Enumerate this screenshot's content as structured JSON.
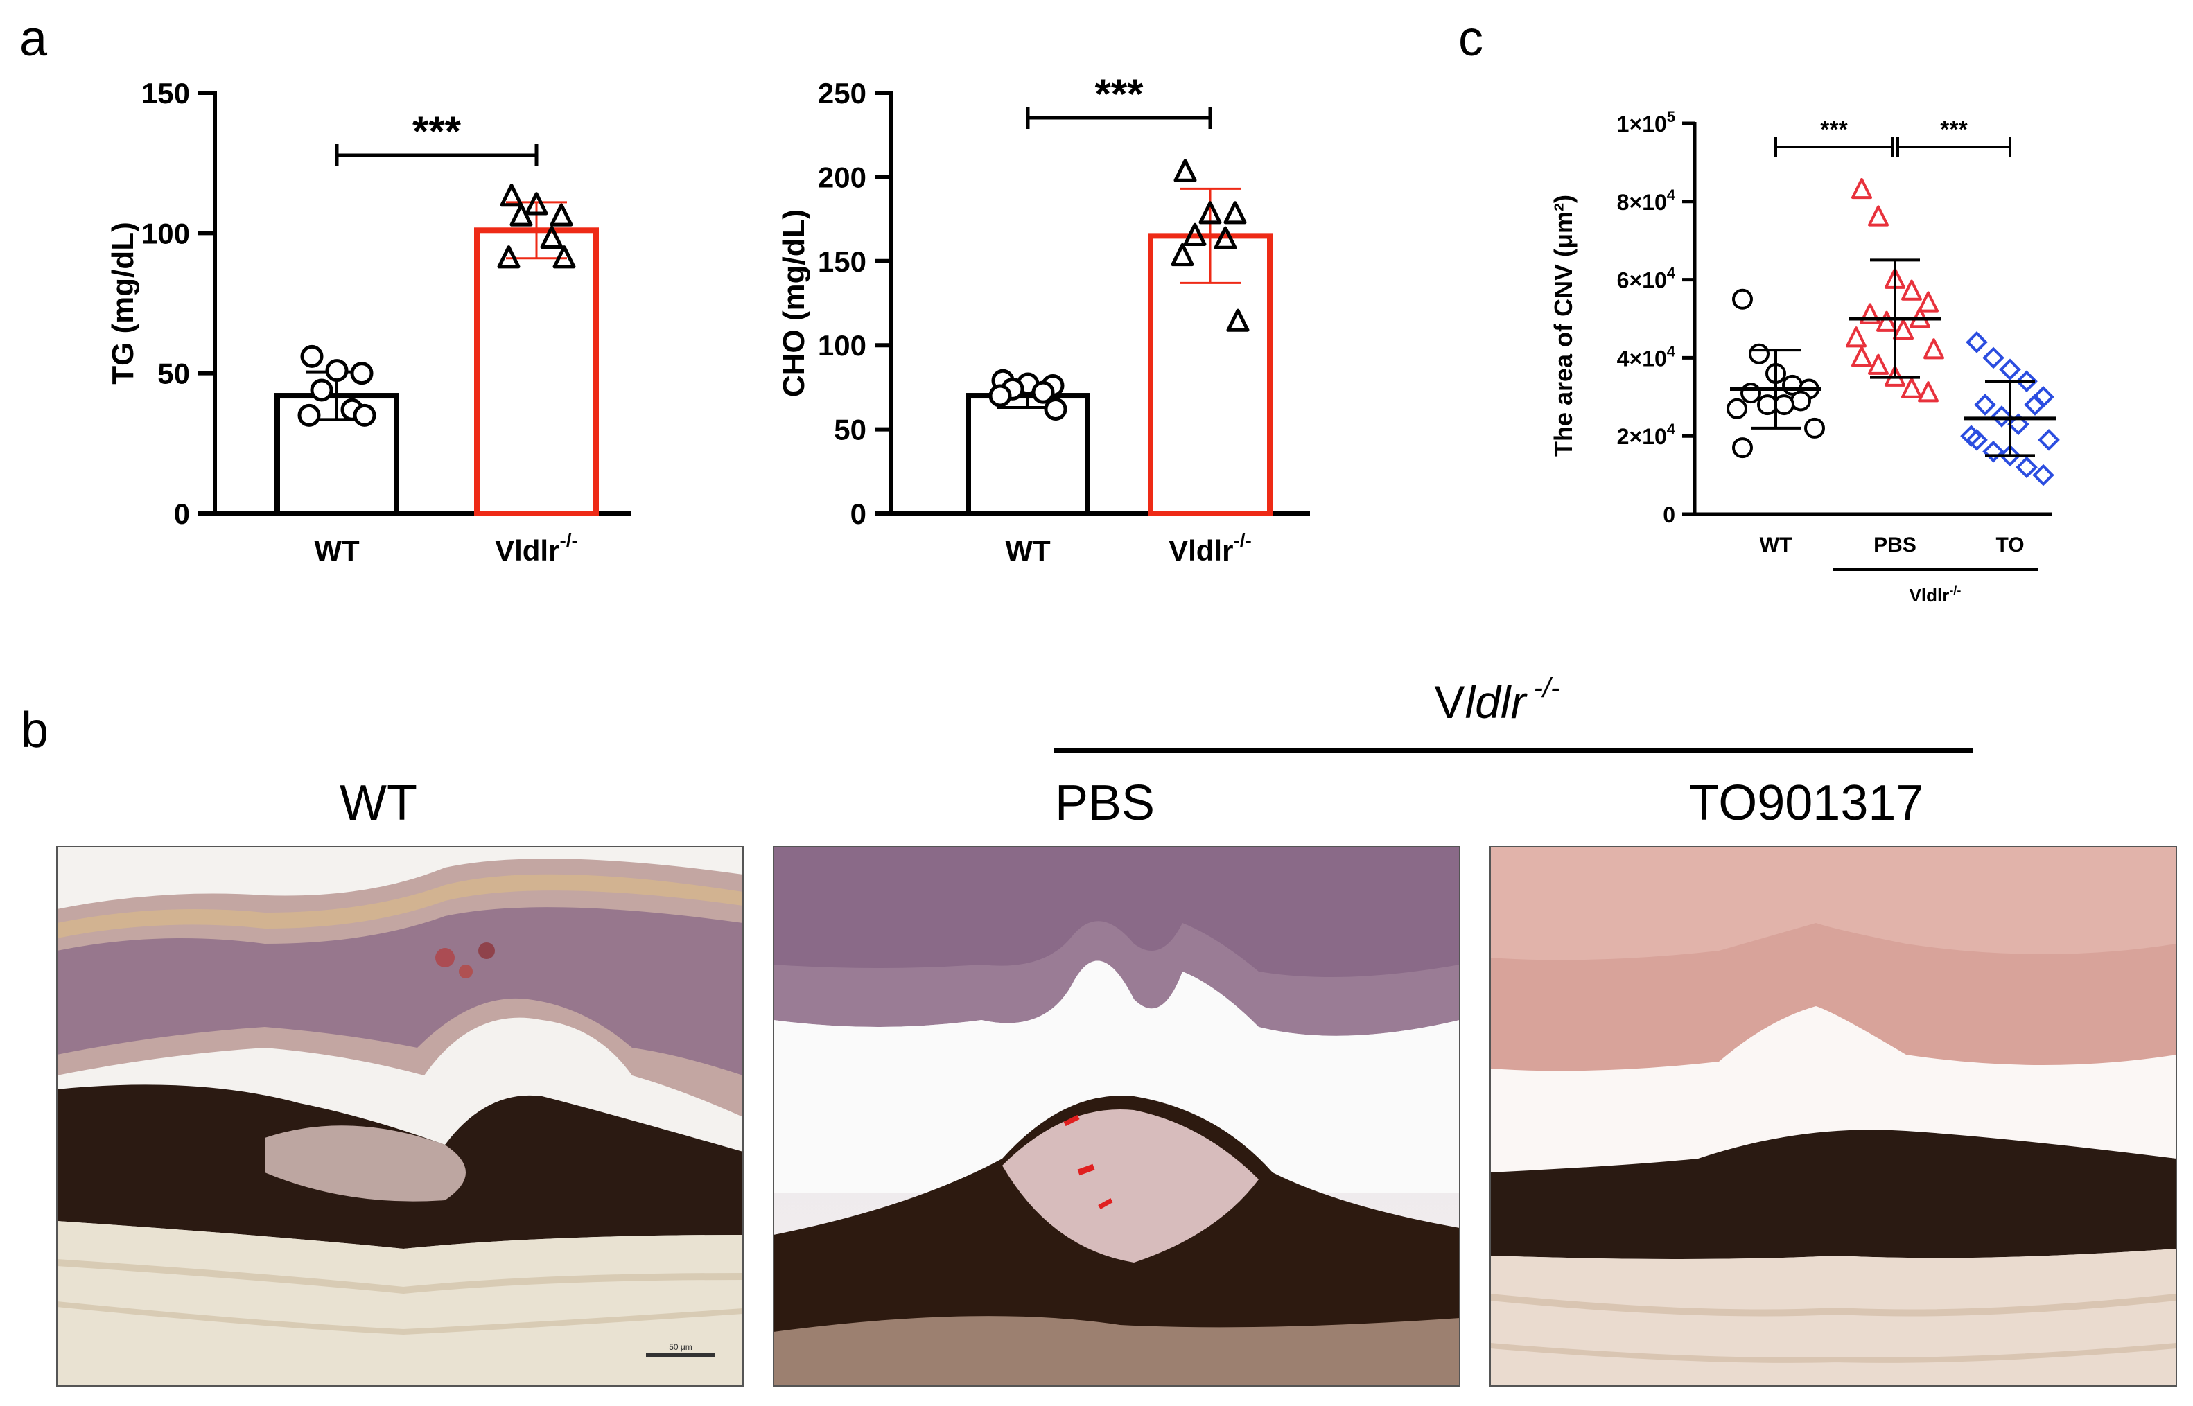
{
  "panels": {
    "a": "a",
    "b": "b",
    "c": "c"
  },
  "colors": {
    "wt": "#000000",
    "vldlr": "#ee2a16",
    "pbs": "#e8323c",
    "to": "#2b4de0"
  },
  "chart_data": [
    {
      "type": "bar",
      "title": "",
      "ylabel": "TG  (mg/dL)",
      "xlabel": "",
      "categories": [
        "WT",
        "Vldlr-/-"
      ],
      "category_labels": [
        {
          "base": "WT",
          "sup": ""
        },
        {
          "base": "Vldlr",
          "sup": "-/-"
        }
      ],
      "values": [
        42,
        101
      ],
      "error_sd": [
        8.5,
        10
      ],
      "ylim": [
        0,
        150
      ],
      "yticks": [
        0,
        50,
        100,
        150
      ],
      "ytick_labels": [
        "0",
        "50",
        "100",
        "150"
      ],
      "points": [
        [
          56,
          51,
          50,
          44,
          37,
          35,
          35
        ],
        [
          113,
          110,
          106,
          106,
          98,
          91,
          91
        ]
      ],
      "markers": [
        "circle",
        "triangle"
      ],
      "significance": {
        "label": "***",
        "between": [
          0,
          1
        ]
      }
    },
    {
      "type": "bar",
      "title": "",
      "ylabel": "CHO (mg/dL)",
      "xlabel": "",
      "categories": [
        "WT",
        "Vldlr-/-"
      ],
      "category_labels": [
        {
          "base": "WT",
          "sup": ""
        },
        {
          "base": "Vldlr",
          "sup": "-/-"
        }
      ],
      "values": [
        70,
        165
      ],
      "error_sd": [
        7,
        28
      ],
      "ylim": [
        0,
        250
      ],
      "yticks": [
        0,
        50,
        100,
        150,
        200,
        250
      ],
      "ytick_labels": [
        "0",
        "50",
        "100",
        "150",
        "200",
        "250"
      ],
      "points": [
        [
          79,
          77,
          76,
          74,
          72,
          70,
          62
        ],
        [
          203,
          178,
          178,
          165,
          163,
          153,
          114
        ]
      ],
      "markers": [
        "circle",
        "triangle"
      ],
      "significance": {
        "label": "***",
        "between": [
          0,
          1
        ]
      }
    },
    {
      "type": "scatter",
      "title": "",
      "ylabel": "The area of CNV (μm²)",
      "xlabel": "",
      "categories": [
        "WT",
        "PBS",
        "TO"
      ],
      "group_label": {
        "base": "Vldlr",
        "sup": "-/-"
      },
      "group_spans": [
        1,
        2
      ],
      "means": [
        32000,
        50000,
        24500
      ],
      "sd_upper": [
        42000,
        65000,
        34000
      ],
      "sd_lower": [
        22000,
        35000,
        15000
      ],
      "ylim": [
        0,
        100000
      ],
      "yticks": [
        0,
        20000,
        40000,
        60000,
        80000,
        100000
      ],
      "ytick_labels": [
        {
          "base": "0",
          "sup": ""
        },
        {
          "base": "2×10",
          "sup": "4"
        },
        {
          "base": "4×10",
          "sup": "4"
        },
        {
          "base": "6×10",
          "sup": "4"
        },
        {
          "base": "8×10",
          "sup": "4"
        },
        {
          "base": "1×10",
          "sup": "5"
        }
      ],
      "points": [
        [
          55000,
          41000,
          36000,
          33000,
          32000,
          31000,
          29000,
          28000,
          28000,
          27000,
          22000,
          17000
        ],
        [
          83000,
          76000,
          60000,
          57000,
          54000,
          51000,
          50000,
          49000,
          47000,
          45000,
          42000,
          40000,
          38000,
          35000,
          32000,
          31000
        ],
        [
          44000,
          40000,
          37000,
          34000,
          30000,
          28000,
          28000,
          25000,
          23000,
          20000,
          19000,
          19000,
          16000,
          15000,
          12000,
          10000
        ]
      ],
      "markers": [
        "circle",
        "triangle",
        "diamond"
      ],
      "significance": [
        {
          "label": "***",
          "between": [
            0,
            1
          ]
        },
        {
          "label": "***",
          "between": [
            1,
            2
          ]
        }
      ]
    }
  ],
  "panel_b": {
    "header_prefix": "V",
    "header_italic": "ldlr",
    "header_sup": " -/-",
    "images": [
      {
        "title": "WT",
        "scale_bar": "50 μm"
      },
      {
        "title": "PBS"
      },
      {
        "title": "TO901317"
      }
    ]
  }
}
